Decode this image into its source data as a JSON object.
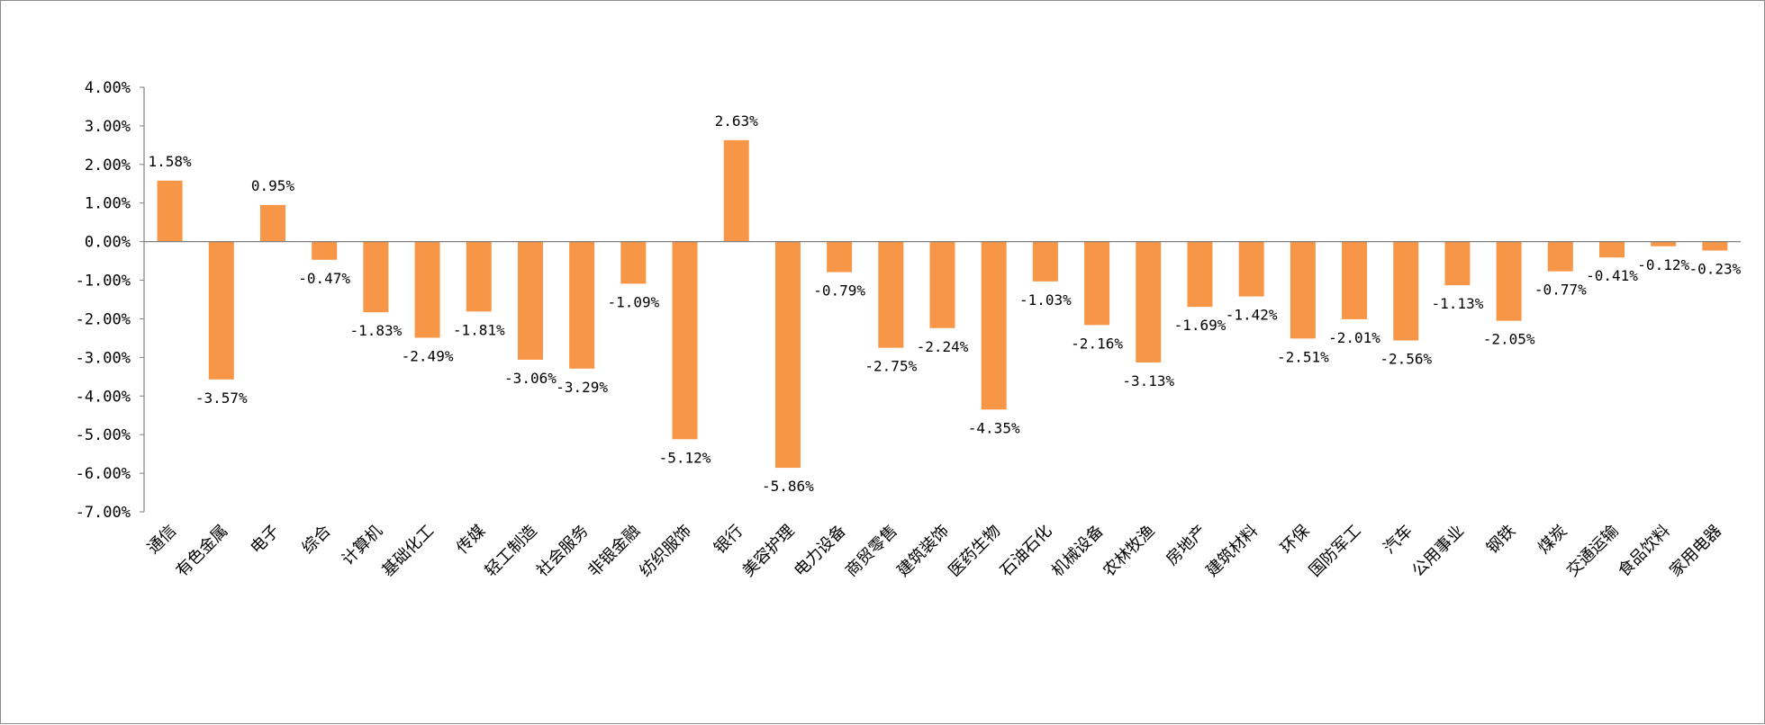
{
  "chart_data": {
    "type": "bar",
    "title": "",
    "xlabel": "",
    "ylabel": "",
    "ylim": [
      -7,
      4
    ],
    "yticks": [
      4,
      3,
      2,
      1,
      0,
      -1,
      -2,
      -3,
      -4,
      -5,
      -6,
      -7
    ],
    "ytick_labels": [
      "4.00%",
      "3.00%",
      "2.00%",
      "1.00%",
      "0.00%",
      "-1.00%",
      "-2.00%",
      "-3.00%",
      "-4.00%",
      "-5.00%",
      "-6.00%",
      "-7.00%"
    ],
    "categories": [
      "通信",
      "有色金属",
      "电子",
      "综合",
      "计算机",
      "基础化工",
      "传媒",
      "轻工制造",
      "社会服务",
      "非银金融",
      "纺织服饰",
      "银行",
      "美容护理",
      "电力设备",
      "商贸零售",
      "建筑装饰",
      "医药生物",
      "石油石化",
      "机械设备",
      "农林牧渔",
      "房地产",
      "建筑材料",
      "环保",
      "国防军工",
      "汽车",
      "公用事业",
      "钢铁",
      "煤炭",
      "交通运输",
      "食品饮料",
      "家用电器"
    ],
    "values": [
      1.58,
      -3.57,
      0.95,
      -0.47,
      -1.83,
      -2.49,
      -1.81,
      -3.06,
      -3.29,
      -1.09,
      -5.12,
      2.63,
      -5.86,
      -0.79,
      -2.75,
      -2.24,
      -4.35,
      -1.03,
      -2.16,
      -3.13,
      -1.69,
      -1.42,
      -2.51,
      -2.01,
      -2.56,
      -1.13,
      -2.05,
      -0.77,
      -0.41,
      -0.12,
      -0.23
    ],
    "data_labels": [
      "1.58%",
      "-3.57%",
      "0.95%",
      "-0.47%",
      "-1.83%",
      "-2.49%",
      "-1.81%",
      "-3.06%",
      "-3.29%",
      "-1.09%",
      "-5.12%",
      "2.63%",
      "-5.86%",
      "-0.79%",
      "-2.75%",
      "-2.24%",
      "-4.35%",
      "-1.03%",
      "-2.16%",
      "-3.13%",
      "-1.69%",
      "-1.42%",
      "-2.51%",
      "-2.01%",
      "-2.56%",
      "-1.13%",
      "-2.05%",
      "-0.77%",
      "-0.41%",
      "-0.12%",
      "-0.23%"
    ],
    "bar_color": "#F79646",
    "axis_color": "#808080",
    "grid": false,
    "legend": "none"
  }
}
